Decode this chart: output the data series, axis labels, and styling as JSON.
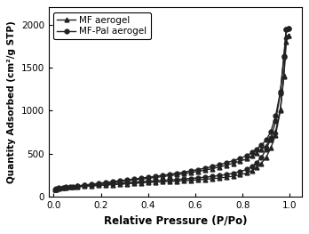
{
  "xlabel": "Relative Pressure (P/Po)",
  "ylabel": "Quantity Adsorbed (cm²/g STP)",
  "xlim": [
    -0.02,
    1.05
  ],
  "ylim": [
    0,
    2200
  ],
  "yticks": [
    0,
    500,
    1000,
    1500,
    2000
  ],
  "xticks": [
    0.0,
    0.2,
    0.4,
    0.6,
    0.8,
    1.0
  ],
  "legend": [
    "MF aerogel",
    "MF-Pal aerogel"
  ],
  "mf_ads_x": [
    0.005,
    0.02,
    0.05,
    0.08,
    0.1,
    0.13,
    0.16,
    0.19,
    0.22,
    0.25,
    0.28,
    0.31,
    0.34,
    0.37,
    0.4,
    0.43,
    0.46,
    0.49,
    0.52,
    0.55,
    0.58,
    0.61,
    0.64,
    0.67,
    0.7,
    0.73,
    0.76,
    0.79,
    0.82,
    0.84,
    0.86,
    0.88,
    0.9,
    0.92,
    0.94,
    0.96,
    0.975,
    0.985,
    0.993
  ],
  "mf_ads_y": [
    82,
    95,
    105,
    112,
    117,
    122,
    127,
    132,
    137,
    142,
    147,
    152,
    157,
    162,
    167,
    171,
    175,
    179,
    183,
    187,
    192,
    197,
    203,
    210,
    218,
    228,
    240,
    256,
    278,
    305,
    340,
    390,
    460,
    570,
    720,
    1000,
    1400,
    1800,
    1870
  ],
  "mf_des_x": [
    0.993,
    0.985,
    0.975,
    0.96,
    0.94,
    0.92,
    0.9,
    0.88,
    0.86,
    0.84,
    0.82,
    0.79,
    0.76,
    0.73,
    0.7,
    0.67,
    0.64,
    0.61,
    0.58,
    0.55,
    0.52,
    0.49,
    0.46,
    0.43,
    0.4,
    0.37,
    0.34,
    0.31,
    0.28,
    0.25,
    0.22,
    0.19,
    0.16,
    0.13,
    0.1,
    0.07,
    0.04,
    0.01
  ],
  "mf_des_y": [
    1870,
    1860,
    1410,
    1020,
    760,
    660,
    595,
    548,
    508,
    474,
    444,
    415,
    390,
    367,
    346,
    327,
    310,
    295,
    281,
    268,
    256,
    245,
    235,
    225,
    215,
    206,
    197,
    188,
    179,
    170,
    161,
    152,
    143,
    134,
    124,
    115,
    105,
    90
  ],
  "mfpal_ads_x": [
    0.005,
    0.02,
    0.05,
    0.08,
    0.1,
    0.13,
    0.16,
    0.19,
    0.22,
    0.25,
    0.28,
    0.31,
    0.34,
    0.37,
    0.4,
    0.43,
    0.46,
    0.49,
    0.52,
    0.55,
    0.58,
    0.61,
    0.64,
    0.67,
    0.7,
    0.73,
    0.76,
    0.79,
    0.82,
    0.84,
    0.86,
    0.88,
    0.9,
    0.92,
    0.94,
    0.96,
    0.975,
    0.985,
    0.993
  ],
  "mfpal_ads_y": [
    88,
    103,
    113,
    121,
    126,
    132,
    137,
    143,
    148,
    154,
    159,
    165,
    170,
    176,
    181,
    186,
    191,
    196,
    201,
    207,
    213,
    220,
    228,
    237,
    247,
    259,
    274,
    294,
    320,
    352,
    398,
    460,
    550,
    680,
    880,
    1200,
    1620,
    1940,
    1960
  ],
  "mfpal_des_x": [
    0.993,
    0.985,
    0.975,
    0.96,
    0.94,
    0.92,
    0.9,
    0.88,
    0.86,
    0.84,
    0.82,
    0.79,
    0.76,
    0.73,
    0.7,
    0.67,
    0.64,
    0.61,
    0.58,
    0.55,
    0.52,
    0.49,
    0.46,
    0.43,
    0.4,
    0.37,
    0.34,
    0.31,
    0.28,
    0.25,
    0.22,
    0.19,
    0.16,
    0.13,
    0.1,
    0.07,
    0.04,
    0.01
  ],
  "mfpal_des_y": [
    1960,
    1945,
    1640,
    1220,
    940,
    760,
    660,
    600,
    555,
    515,
    480,
    448,
    420,
    395,
    372,
    351,
    333,
    316,
    301,
    286,
    273,
    261,
    249,
    238,
    227,
    217,
    207,
    197,
    187,
    177,
    167,
    157,
    147,
    137,
    127,
    116,
    106,
    93
  ],
  "line_color": "#222222",
  "bg_color": "#ffffff",
  "marker_size": 3.5,
  "line_width": 1.0
}
